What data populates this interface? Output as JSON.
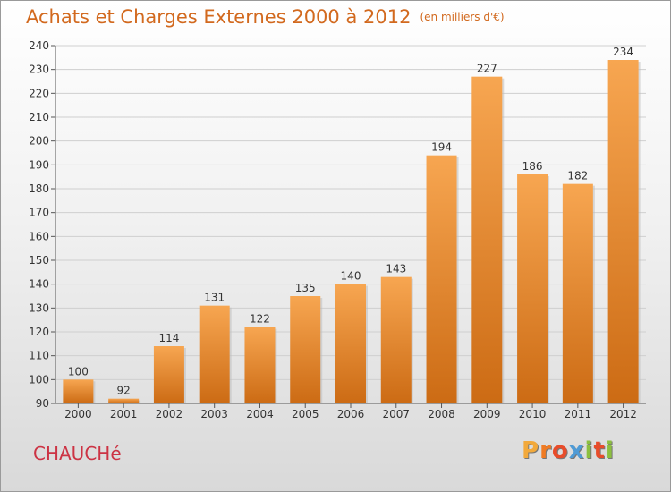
{
  "header": {
    "title": "Achats et Charges Externes 2000 à 2012",
    "unit": "(en milliers d'€)"
  },
  "footer": {
    "commune": "CHAUCHé",
    "logo_letters": [
      "P",
      "r",
      "o",
      "x",
      "i",
      "t",
      "i"
    ],
    "logo_colors": [
      "#f2a93b",
      "#f07b23",
      "#e84c2a",
      "#4f9bd6",
      "#8cbf3f",
      "#e84c2a",
      "#8cbf3f"
    ]
  },
  "colors": {
    "bar_light": "#f7a651",
    "bar_dark": "#cc6b14",
    "title": "#d2691e",
    "commune": "#cc3344"
  },
  "chart_data": {
    "type": "bar",
    "title": "Achats et Charges Externes 2000 à 2012",
    "subtitle": "(en milliers d'€)",
    "categories": [
      "2000",
      "2001",
      "2002",
      "2003",
      "2004",
      "2005",
      "2006",
      "2007",
      "2008",
      "2009",
      "2010",
      "2011",
      "2012"
    ],
    "values": [
      100,
      92,
      114,
      131,
      122,
      135,
      140,
      143,
      194,
      227,
      186,
      182,
      234
    ],
    "ylim": [
      90,
      240
    ],
    "yticks": [
      90,
      100,
      110,
      120,
      130,
      140,
      150,
      160,
      170,
      180,
      190,
      200,
      210,
      220,
      230,
      240
    ],
    "grid": true,
    "legend": "none"
  }
}
